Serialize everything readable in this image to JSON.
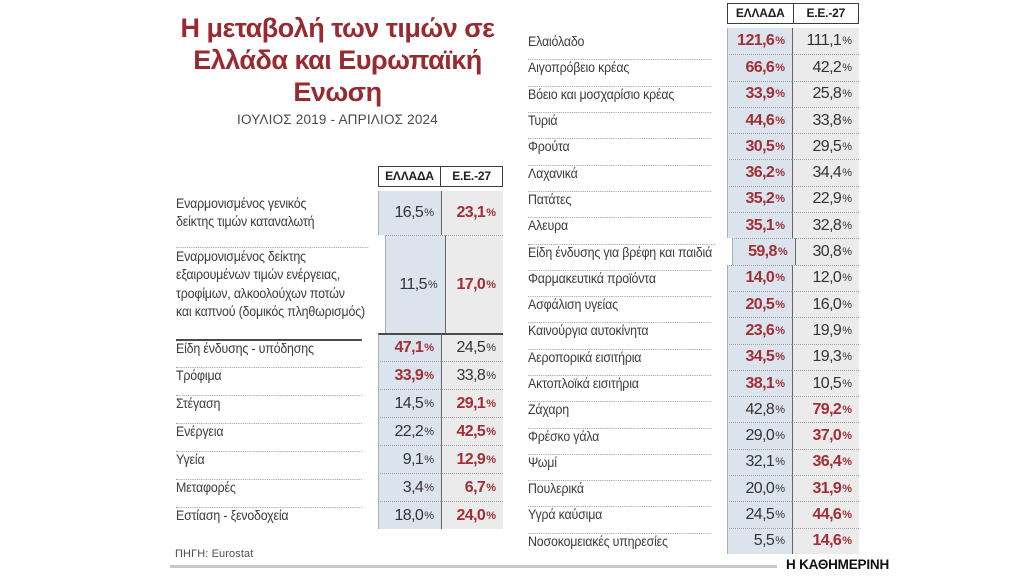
{
  "title": "Η μεταβολή των τιμών σε Ελλάδα και Ευρωπαϊκή Ενωση",
  "subtitle": "ΙΟΥΛΙΟΣ 2019 - ΑΠΡΙΛΙΟΣ 2024",
  "source": "ΠΗΓΗ: Eurostat",
  "brand": "Η ΚΑΘΗΜΕΡΙΝΗ",
  "colors": {
    "accent_red": "#982b31",
    "value_red": "#a02f36",
    "greece_col_bg": "#dbe3ed",
    "eu_col_bg": "#ebebeb"
  },
  "chart_data": [
    {
      "type": "table",
      "columns": [
        "ΕΛΛΑΔΑ",
        "Ε.Ε.-27"
      ],
      "summary_rows": [
        {
          "label": "Εναρμονισμένος γενικός\nδείκτης τιμών καταναλωτή",
          "greece": "16,5%",
          "eu": "23,1%",
          "highlight": "eu"
        },
        {
          "label": "Εναρμονισμένος δείκτης\nεξαιρουμένων τιμών ενέργειας,\nτροφίμων, αλκοολούχων ποτών\nκαι καπνού (δομικός πληθωρισμός)",
          "greece": "11,5%",
          "eu": "17,0%",
          "highlight": "eu"
        }
      ],
      "rows": [
        {
          "label": "Είδη ένδυσης - υπόδησης",
          "greece": "47,1%",
          "eu": "24,5%",
          "highlight": "greece"
        },
        {
          "label": "Τρόφιμα",
          "greece": "33,9%",
          "eu": "33,8%",
          "highlight": "greece"
        },
        {
          "label": "Στέγαση",
          "greece": "14,5%",
          "eu": "29,1%",
          "highlight": "eu"
        },
        {
          "label": "Ενέργεια",
          "greece": "22,2%",
          "eu": "42,5%",
          "highlight": "eu"
        },
        {
          "label": "Υγεία",
          "greece": "9,1%",
          "eu": "12,9%",
          "highlight": "eu"
        },
        {
          "label": "Μεταφορές",
          "greece": "3,4%",
          "eu": "6,7%",
          "highlight": "eu"
        },
        {
          "label": "Εστίαση - ξενοδοχεία",
          "greece": "18,0%",
          "eu": "24,0%",
          "highlight": "eu"
        }
      ]
    },
    {
      "type": "table",
      "columns": [
        "ΕΛΛΑΔΑ",
        "Ε.Ε.-27"
      ],
      "rows": [
        {
          "label": "Ελαιόλαδο",
          "greece": "121,6%",
          "eu": "111,1%",
          "highlight": "greece"
        },
        {
          "label": "Αιγοπρόβειο κρέας",
          "greece": "66,6%",
          "eu": "42,2%",
          "highlight": "greece"
        },
        {
          "label": "Βόειο και μοσχαρίσιο κρέας",
          "greece": "33,9%",
          "eu": "25,8%",
          "highlight": "greece"
        },
        {
          "label": "Τυριά",
          "greece": "44,6%",
          "eu": "33,8%",
          "highlight": "greece"
        },
        {
          "label": "Φρούτα",
          "greece": "30,5%",
          "eu": "29,5%",
          "highlight": "greece"
        },
        {
          "label": "Λαχανικά",
          "greece": "36,2%",
          "eu": "34,4%",
          "highlight": "greece"
        },
        {
          "label": "Πατάτες",
          "greece": "35,2%",
          "eu": "22,9%",
          "highlight": "greece"
        },
        {
          "label": "Αλευρα",
          "greece": "35,1%",
          "eu": "32,8%",
          "highlight": "greece"
        },
        {
          "label": "Είδη ένδυσης για βρέφη και παιδιά",
          "greece": "59,8%",
          "eu": "30,8%",
          "highlight": "greece"
        },
        {
          "label": "Φαρμακευτικά προϊόντα",
          "greece": "14,0%",
          "eu": "12,0%",
          "highlight": "greece"
        },
        {
          "label": "Ασφάλιση υγείας",
          "greece": "20,5%",
          "eu": "16,0%",
          "highlight": "greece"
        },
        {
          "label": "Καινούργια αυτοκίνητα",
          "greece": "23,6%",
          "eu": "19,9%",
          "highlight": "greece"
        },
        {
          "label": "Αεροπορικά εισιτήρια",
          "greece": "34,5%",
          "eu": "19,3%",
          "highlight": "greece"
        },
        {
          "label": "Ακτοπλοϊκά εισιτήρια",
          "greece": "38,1%",
          "eu": "10,5%",
          "highlight": "greece"
        },
        {
          "label": "Ζάχαρη",
          "greece": "42,8%",
          "eu": "79,2%",
          "highlight": "eu"
        },
        {
          "label": "Φρέσκο γάλα",
          "greece": "29,0%",
          "eu": "37,0%",
          "highlight": "eu"
        },
        {
          "label": "Ψωμί",
          "greece": "32,1%",
          "eu": "36,4%",
          "highlight": "eu"
        },
        {
          "label": "Πουλερικά",
          "greece": "20,0%",
          "eu": "31,9%",
          "highlight": "eu"
        },
        {
          "label": "Υγρά καύσιμα",
          "greece": "24,5%",
          "eu": "44,6%",
          "highlight": "eu"
        },
        {
          "label": "Νοσοκομειακές υπηρεσίες",
          "greece": "5,5%",
          "eu": "14,6%",
          "highlight": "eu"
        }
      ]
    }
  ]
}
